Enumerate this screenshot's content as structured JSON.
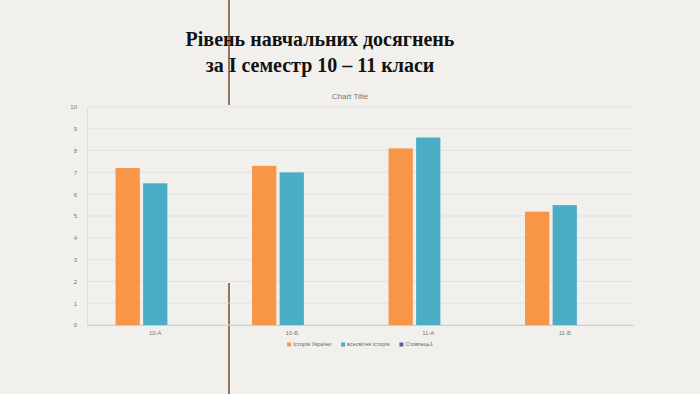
{
  "slide": {
    "title_lines": [
      "Рівень навчальних досягнень",
      "за І семестр  10 – 11 класи"
    ]
  },
  "chart_data": {
    "type": "bar",
    "title": "Chart Title",
    "categories": [
      "10-А",
      "10-Б",
      "11-А",
      "11-Б"
    ],
    "series": [
      {
        "name": "Історія України",
        "color": "#f79646",
        "values": [
          7.2,
          7.3,
          8.1,
          5.2
        ]
      },
      {
        "name": "всесвітня історія",
        "color": "#4bacc6",
        "values": [
          6.5,
          7.0,
          8.6,
          5.5
        ]
      },
      {
        "name": "Стовпець1",
        "color": "#5b61a8",
        "values": [
          null,
          null,
          null,
          null
        ]
      }
    ],
    "ylim": [
      0,
      10
    ],
    "yticks": [
      0,
      1,
      2,
      3,
      4,
      5,
      6,
      7,
      8,
      9,
      10
    ],
    "grid": true,
    "legend": "bottom"
  }
}
